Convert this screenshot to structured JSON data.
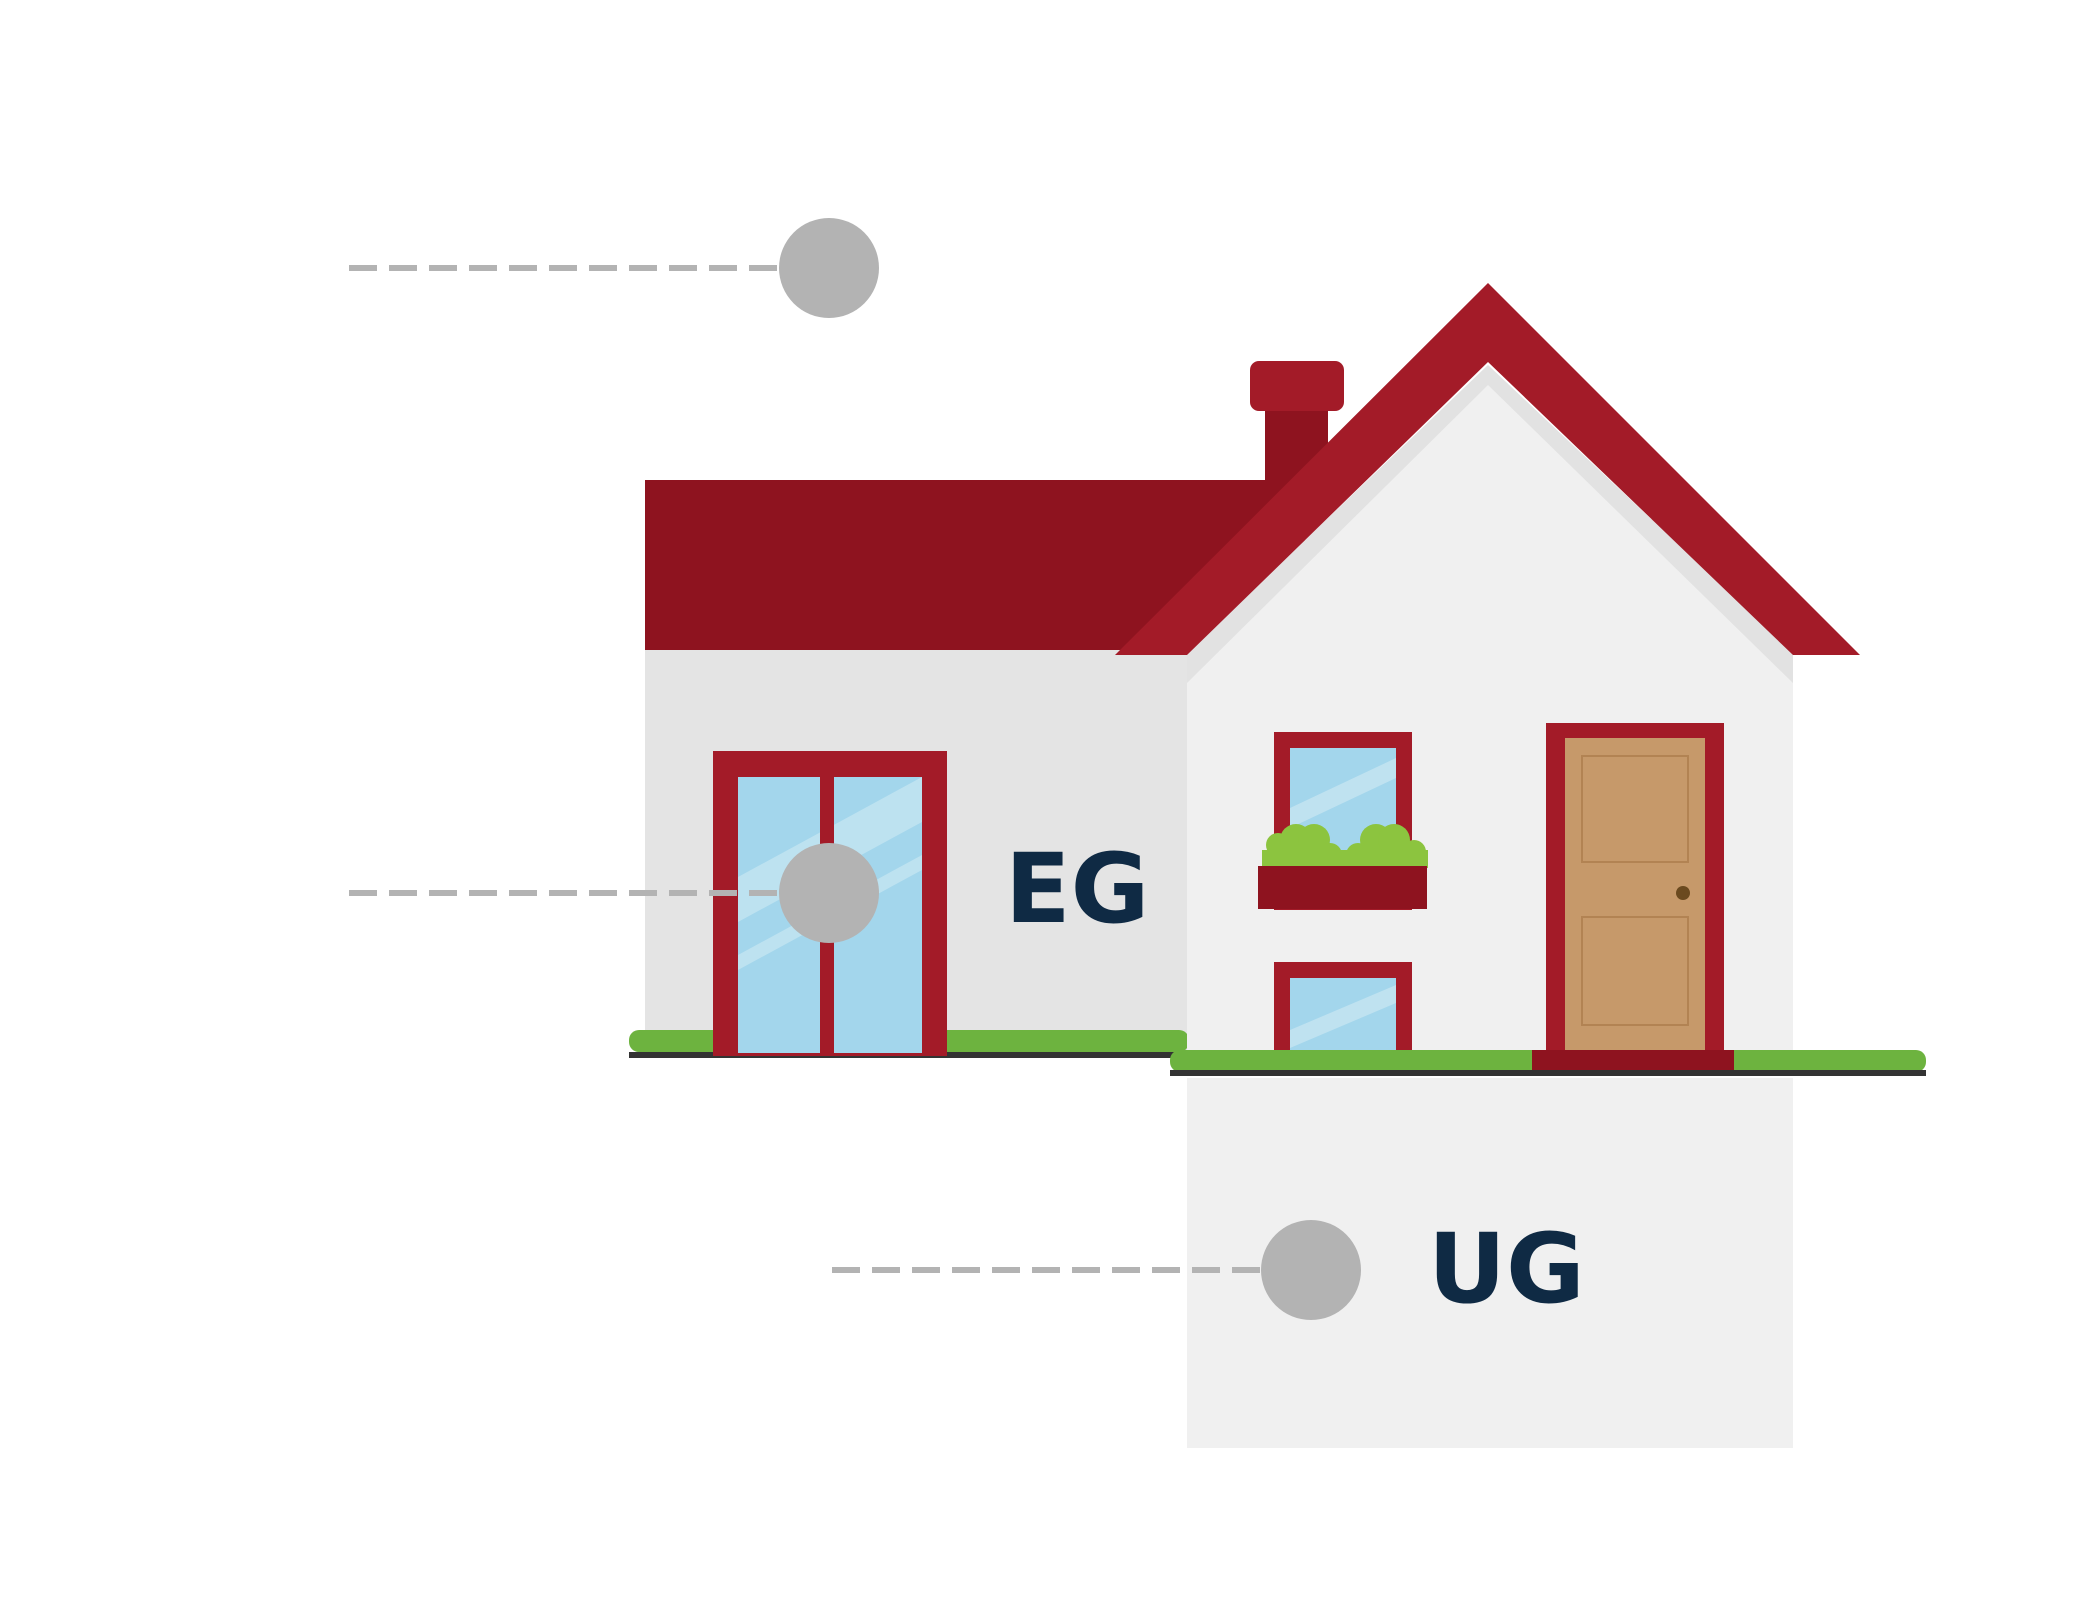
{
  "floors": [
    {
      "id": "roof",
      "label": ""
    },
    {
      "id": "ground-floor",
      "label": "EG"
    },
    {
      "id": "basement",
      "label": "UG"
    }
  ],
  "colors": {
    "background": "#ffffff",
    "roof_dark": "#8e131f",
    "roof_main": "#a31b28",
    "frame_red": "#a31b28",
    "wall_light": "#f0f0f0",
    "wall_side": "#e4e4e4",
    "glass": "#a3d6ec",
    "glass_highlight": "#c6e5f1",
    "door": "#c6996a",
    "grass": "#6db33f",
    "plant": "#8cc43f",
    "ground_line": "#333333",
    "marker": "#b3b3b3",
    "label_text": "#0f2a44"
  },
  "icons": [
    "house-illustration",
    "floor-marker-dot",
    "dashed-leader-line"
  ]
}
